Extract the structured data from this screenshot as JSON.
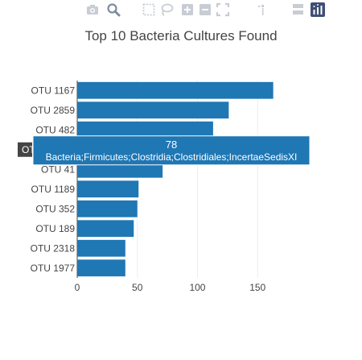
{
  "modebar": {
    "buttons": [
      {
        "icon": "camera-icon"
      },
      {
        "icon": "zoom-icon"
      },
      {
        "icon": "pan-icon"
      },
      {
        "icon": "box-select-icon"
      },
      {
        "icon": "lasso-select-icon"
      },
      {
        "icon": "zoom-in-icon"
      },
      {
        "icon": "zoom-out-icon"
      },
      {
        "icon": "autoscale-icon"
      },
      {
        "icon": "reset-axes-icon"
      },
      {
        "icon": "spike-lines-icon"
      },
      {
        "icon": "hover-closest-icon"
      },
      {
        "icon": "hover-compare-icon"
      },
      {
        "icon": "plotly-logo-icon"
      }
    ],
    "colors": {
      "icon": "#c8ccd4",
      "active": "#7f8ba0",
      "logo_bg": "#3f4f75"
    }
  },
  "chart_data": {
    "type": "bar",
    "orientation": "horizontal",
    "title": "Top 10 Bacteria Cultures Found",
    "categories": [
      "OTU 1167",
      "OTU 2859",
      "OTU 482",
      "OTU 2264",
      "OTU 41",
      "OTU 1189",
      "OTU 352",
      "OTU 189",
      "OTU 2318",
      "OTU 1977"
    ],
    "values": [
      163,
      126,
      113,
      78,
      71,
      51,
      50,
      47,
      40,
      40
    ],
    "xlim": [
      0,
      190
    ],
    "xticks": [
      0,
      50,
      100,
      150
    ],
    "grid": true,
    "bar_color": "#1f77b4",
    "hover": {
      "category_index": 3,
      "category_label_visible": "OT",
      "value_label": "78",
      "text": "Bacteria;Firmicutes;Clostridia;Clostridiales;IncertaeSedisXI"
    }
  }
}
